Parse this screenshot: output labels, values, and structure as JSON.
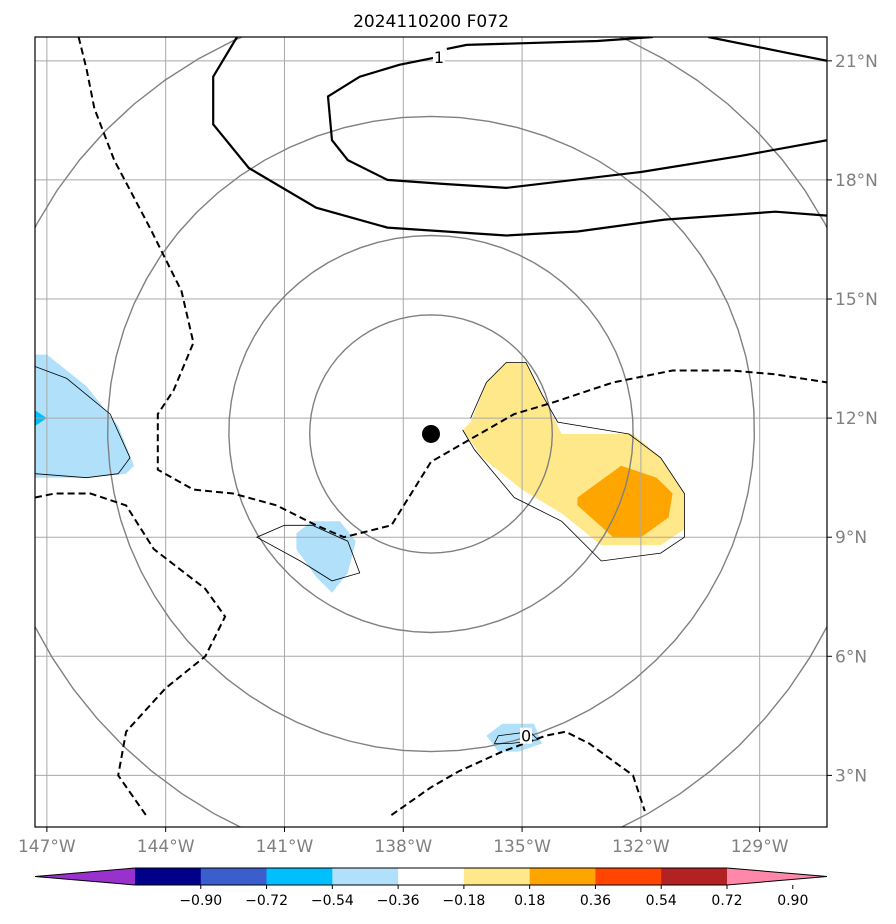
{
  "title": "2024110200 F072",
  "chart_data": {
    "type": "contour-map",
    "title": "2024110200 F072",
    "x_ticks": [
      {
        "lon": -147,
        "label": "147°W"
      },
      {
        "lon": -144,
        "label": "144°W"
      },
      {
        "lon": -141,
        "label": "141°W"
      },
      {
        "lon": -138,
        "label": "138°W"
      },
      {
        "lon": -135,
        "label": "135°W"
      },
      {
        "lon": -132,
        "label": "132°W"
      },
      {
        "lon": -129,
        "label": "129°W"
      }
    ],
    "y_ticks": [
      {
        "lat": 3,
        "label": "3°N"
      },
      {
        "lat": 6,
        "label": "6°N"
      },
      {
        "lat": 9,
        "label": "9°N"
      },
      {
        "lat": 12,
        "label": "12°N"
      },
      {
        "lat": 15,
        "label": "15°N"
      },
      {
        "lat": 18,
        "label": "18°N"
      },
      {
        "lat": 21,
        "label": "21°N"
      }
    ],
    "lon_range": [
      -147.3,
      -127.3
    ],
    "lat_range": [
      1.7,
      21.6
    ],
    "grid": true,
    "center_marker": {
      "lon": -137.3,
      "lat": 11.6
    },
    "ring_radii_deg": [
      3,
      5,
      8,
      11
    ],
    "contour_labels": [
      {
        "text": "1",
        "lon": -137.1,
        "lat": 21.1
      },
      {
        "text": "0",
        "lon": -134.9,
        "lat": 4.0
      }
    ],
    "colorbar": {
      "ticks": [
        "−0.90",
        "−0.72",
        "−0.54",
        "−0.36",
        "−0.18",
        "0.18",
        "0.36",
        "0.54",
        "0.72",
        "0.90"
      ],
      "colors": [
        "#9932cc",
        "#00008b",
        "#3a5fcd",
        "#00bfff",
        "#b0e0fa",
        "#ffffff",
        "#ffe88a",
        "#ffa500",
        "#ff4500",
        "#b22222",
        "#ff88aa"
      ]
    },
    "fill_regions": [
      {
        "level": "0.18 to 0.36",
        "color": "#ffe88a",
        "polygon": [
          [
            -136.3,
            11.9
          ],
          [
            -135.9,
            12.9
          ],
          [
            -135.4,
            13.4
          ],
          [
            -134.9,
            13.4
          ],
          [
            -134.5,
            12.6
          ],
          [
            -134.0,
            11.6
          ],
          [
            -132.2,
            11.6
          ],
          [
            -131.5,
            11.0
          ],
          [
            -130.9,
            10.1
          ],
          [
            -130.9,
            9.2
          ],
          [
            -131.5,
            8.8
          ],
          [
            -133.0,
            8.8
          ],
          [
            -134.0,
            9.6
          ],
          [
            -135.0,
            10.2
          ],
          [
            -136.0,
            11.0
          ],
          [
            -136.5,
            11.7
          ]
        ]
      },
      {
        "level": "0.36 to 0.54",
        "color": "#ffa500",
        "polygon": [
          [
            -133.6,
            10.0
          ],
          [
            -132.5,
            10.8
          ],
          [
            -131.6,
            10.5
          ],
          [
            -131.2,
            10.1
          ],
          [
            -131.3,
            9.5
          ],
          [
            -132.0,
            9.0
          ],
          [
            -132.7,
            9.0
          ],
          [
            -133.6,
            9.8
          ]
        ]
      },
      {
        "level": "-0.36 to -0.18",
        "color": "#b0e0fa",
        "polygon": [
          [
            -147.3,
            13.6
          ],
          [
            -147.0,
            13.6
          ],
          [
            -146.0,
            12.8
          ],
          [
            -145.2,
            11.8
          ],
          [
            -144.8,
            10.8
          ],
          [
            -145.0,
            10.6
          ],
          [
            -146.0,
            10.5
          ],
          [
            -147.3,
            10.5
          ]
        ]
      },
      {
        "level": "-0.54 to -0.36",
        "color": "#00bfff",
        "polygon": [
          [
            -147.3,
            12.2
          ],
          [
            -147.0,
            12.0
          ],
          [
            -147.3,
            11.8
          ]
        ]
      },
      {
        "level": "-0.36 to -0.18",
        "color": "#b0e0fa",
        "polygon": [
          [
            -140.7,
            9.1
          ],
          [
            -140.3,
            9.4
          ],
          [
            -139.6,
            9.4
          ],
          [
            -139.2,
            8.9
          ],
          [
            -139.4,
            8.1
          ],
          [
            -139.8,
            7.6
          ],
          [
            -140.2,
            8.0
          ],
          [
            -140.7,
            8.7
          ]
        ]
      },
      {
        "level": "-0.36 to -0.18",
        "color": "#b0e0fa",
        "polygon": [
          [
            -135.9,
            4.0
          ],
          [
            -135.5,
            4.3
          ],
          [
            -134.7,
            4.3
          ],
          [
            -134.5,
            3.8
          ],
          [
            -135.1,
            3.6
          ],
          [
            -135.6,
            3.6
          ]
        ]
      }
    ],
    "zero_contours": [
      [
        [
          -136.3,
          12.0
        ],
        [
          -135.9,
          12.9
        ],
        [
          -135.4,
          13.4
        ],
        [
          -134.9,
          13.4
        ],
        [
          -134.5,
          12.6
        ],
        [
          -134.1,
          11.9
        ],
        [
          -132.3,
          11.6
        ],
        [
          -131.5,
          11.0
        ],
        [
          -130.9,
          10.1
        ],
        [
          -130.9,
          9.0
        ],
        [
          -131.5,
          8.6
        ],
        [
          -133.0,
          8.4
        ],
        [
          -134.0,
          9.4
        ],
        [
          -135.2,
          10.0
        ],
        [
          -136.2,
          11.2
        ],
        [
          -136.5,
          11.7
        ]
      ],
      [
        [
          -147.3,
          13.3
        ],
        [
          -146.5,
          13.0
        ],
        [
          -145.4,
          12.1
        ],
        [
          -144.9,
          11.0
        ],
        [
          -145.2,
          10.6
        ],
        [
          -146.0,
          10.5
        ],
        [
          -147.3,
          10.6
        ]
      ],
      [
        [
          -141.0,
          9.3
        ],
        [
          -140.3,
          9.3
        ],
        [
          -139.4,
          8.9
        ],
        [
          -139.1,
          8.1
        ],
        [
          -139.8,
          7.9
        ],
        [
          -140.6,
          8.4
        ],
        [
          -141.7,
          9.0
        ],
        [
          -141.0,
          9.3
        ]
      ],
      [
        [
          -135.7,
          3.8
        ],
        [
          -135.6,
          4.0
        ],
        [
          -134.8,
          4.1
        ],
        [
          -134.6,
          3.9
        ],
        [
          -135.3,
          3.8
        ],
        [
          -135.7,
          3.8
        ]
      ]
    ],
    "solid_contours": [
      [
        [
          -142.2,
          21.6
        ],
        [
          -142.8,
          20.6
        ],
        [
          -142.8,
          19.4
        ],
        [
          -141.9,
          18.3
        ],
        [
          -140.2,
          17.3
        ],
        [
          -138.4,
          16.8
        ],
        [
          -135.4,
          16.6
        ],
        [
          -133.6,
          16.7
        ],
        [
          -131.4,
          17.0
        ],
        [
          -128.6,
          17.2
        ],
        [
          -127.3,
          17.1
        ]
      ],
      [
        [
          -137.1,
          21.1
        ],
        [
          -138.1,
          20.9
        ],
        [
          -139.1,
          20.6
        ],
        [
          -139.9,
          20.1
        ],
        [
          -139.8,
          19.0
        ],
        [
          -139.4,
          18.5
        ],
        [
          -138.4,
          18.0
        ],
        [
          -137.0,
          17.9
        ],
        [
          -135.4,
          17.8
        ],
        [
          -132.0,
          18.2
        ],
        [
          -129.5,
          18.6
        ],
        [
          -127.3,
          19.0
        ]
      ],
      [
        [
          -136.9,
          21.3
        ],
        [
          -136.4,
          21.4
        ],
        [
          -133.1,
          21.5
        ],
        [
          -131.7,
          21.6
        ]
      ],
      [
        [
          -130.3,
          21.6
        ],
        [
          -128.3,
          21.2
        ],
        [
          -127.3,
          21.0
        ]
      ]
    ],
    "dashed_contours": [
      [
        [
          -146.2,
          21.6
        ],
        [
          -146.0,
          20.8
        ],
        [
          -145.8,
          19.8
        ],
        [
          -145.3,
          18.5
        ],
        [
          -144.4,
          16.8
        ],
        [
          -143.6,
          15.2
        ],
        [
          -143.3,
          13.9
        ],
        [
          -143.8,
          12.7
        ],
        [
          -144.2,
          12.1
        ],
        [
          -144.2,
          11.1
        ],
        [
          -144.2,
          10.7
        ],
        [
          -143.3,
          10.2
        ],
        [
          -142.3,
          10.1
        ],
        [
          -141.2,
          9.8
        ],
        [
          -140.2,
          9.3
        ],
        [
          -139.5,
          9.0
        ],
        [
          -138.3,
          9.3
        ],
        [
          -137.3,
          10.9
        ],
        [
          -136.6,
          11.3
        ],
        [
          -135.2,
          12.1
        ],
        [
          -134.2,
          12.4
        ],
        [
          -132.7,
          12.9
        ],
        [
          -131.2,
          13.2
        ],
        [
          -129.7,
          13.2
        ],
        [
          -128.6,
          13.1
        ],
        [
          -127.3,
          12.9
        ]
      ],
      [
        [
          -147.3,
          10.0
        ],
        [
          -146.8,
          10.1
        ],
        [
          -145.9,
          10.1
        ],
        [
          -145.0,
          9.8
        ],
        [
          -144.3,
          8.7
        ],
        [
          -143.0,
          7.7
        ],
        [
          -142.5,
          7.0
        ],
        [
          -143.0,
          6.0
        ],
        [
          -144.0,
          5.2
        ],
        [
          -145.0,
          4.1
        ],
        [
          -145.2,
          3.0
        ],
        [
          -144.5,
          2.0
        ]
      ],
      [
        [
          -138.3,
          2.0
        ],
        [
          -137.3,
          2.7
        ],
        [
          -136.6,
          3.1
        ],
        [
          -135.5,
          3.6
        ],
        [
          -134.4,
          4.0
        ],
        [
          -133.9,
          4.1
        ],
        [
          -133.3,
          3.8
        ],
        [
          -132.2,
          3.0
        ],
        [
          -131.9,
          2.1
        ]
      ]
    ]
  }
}
